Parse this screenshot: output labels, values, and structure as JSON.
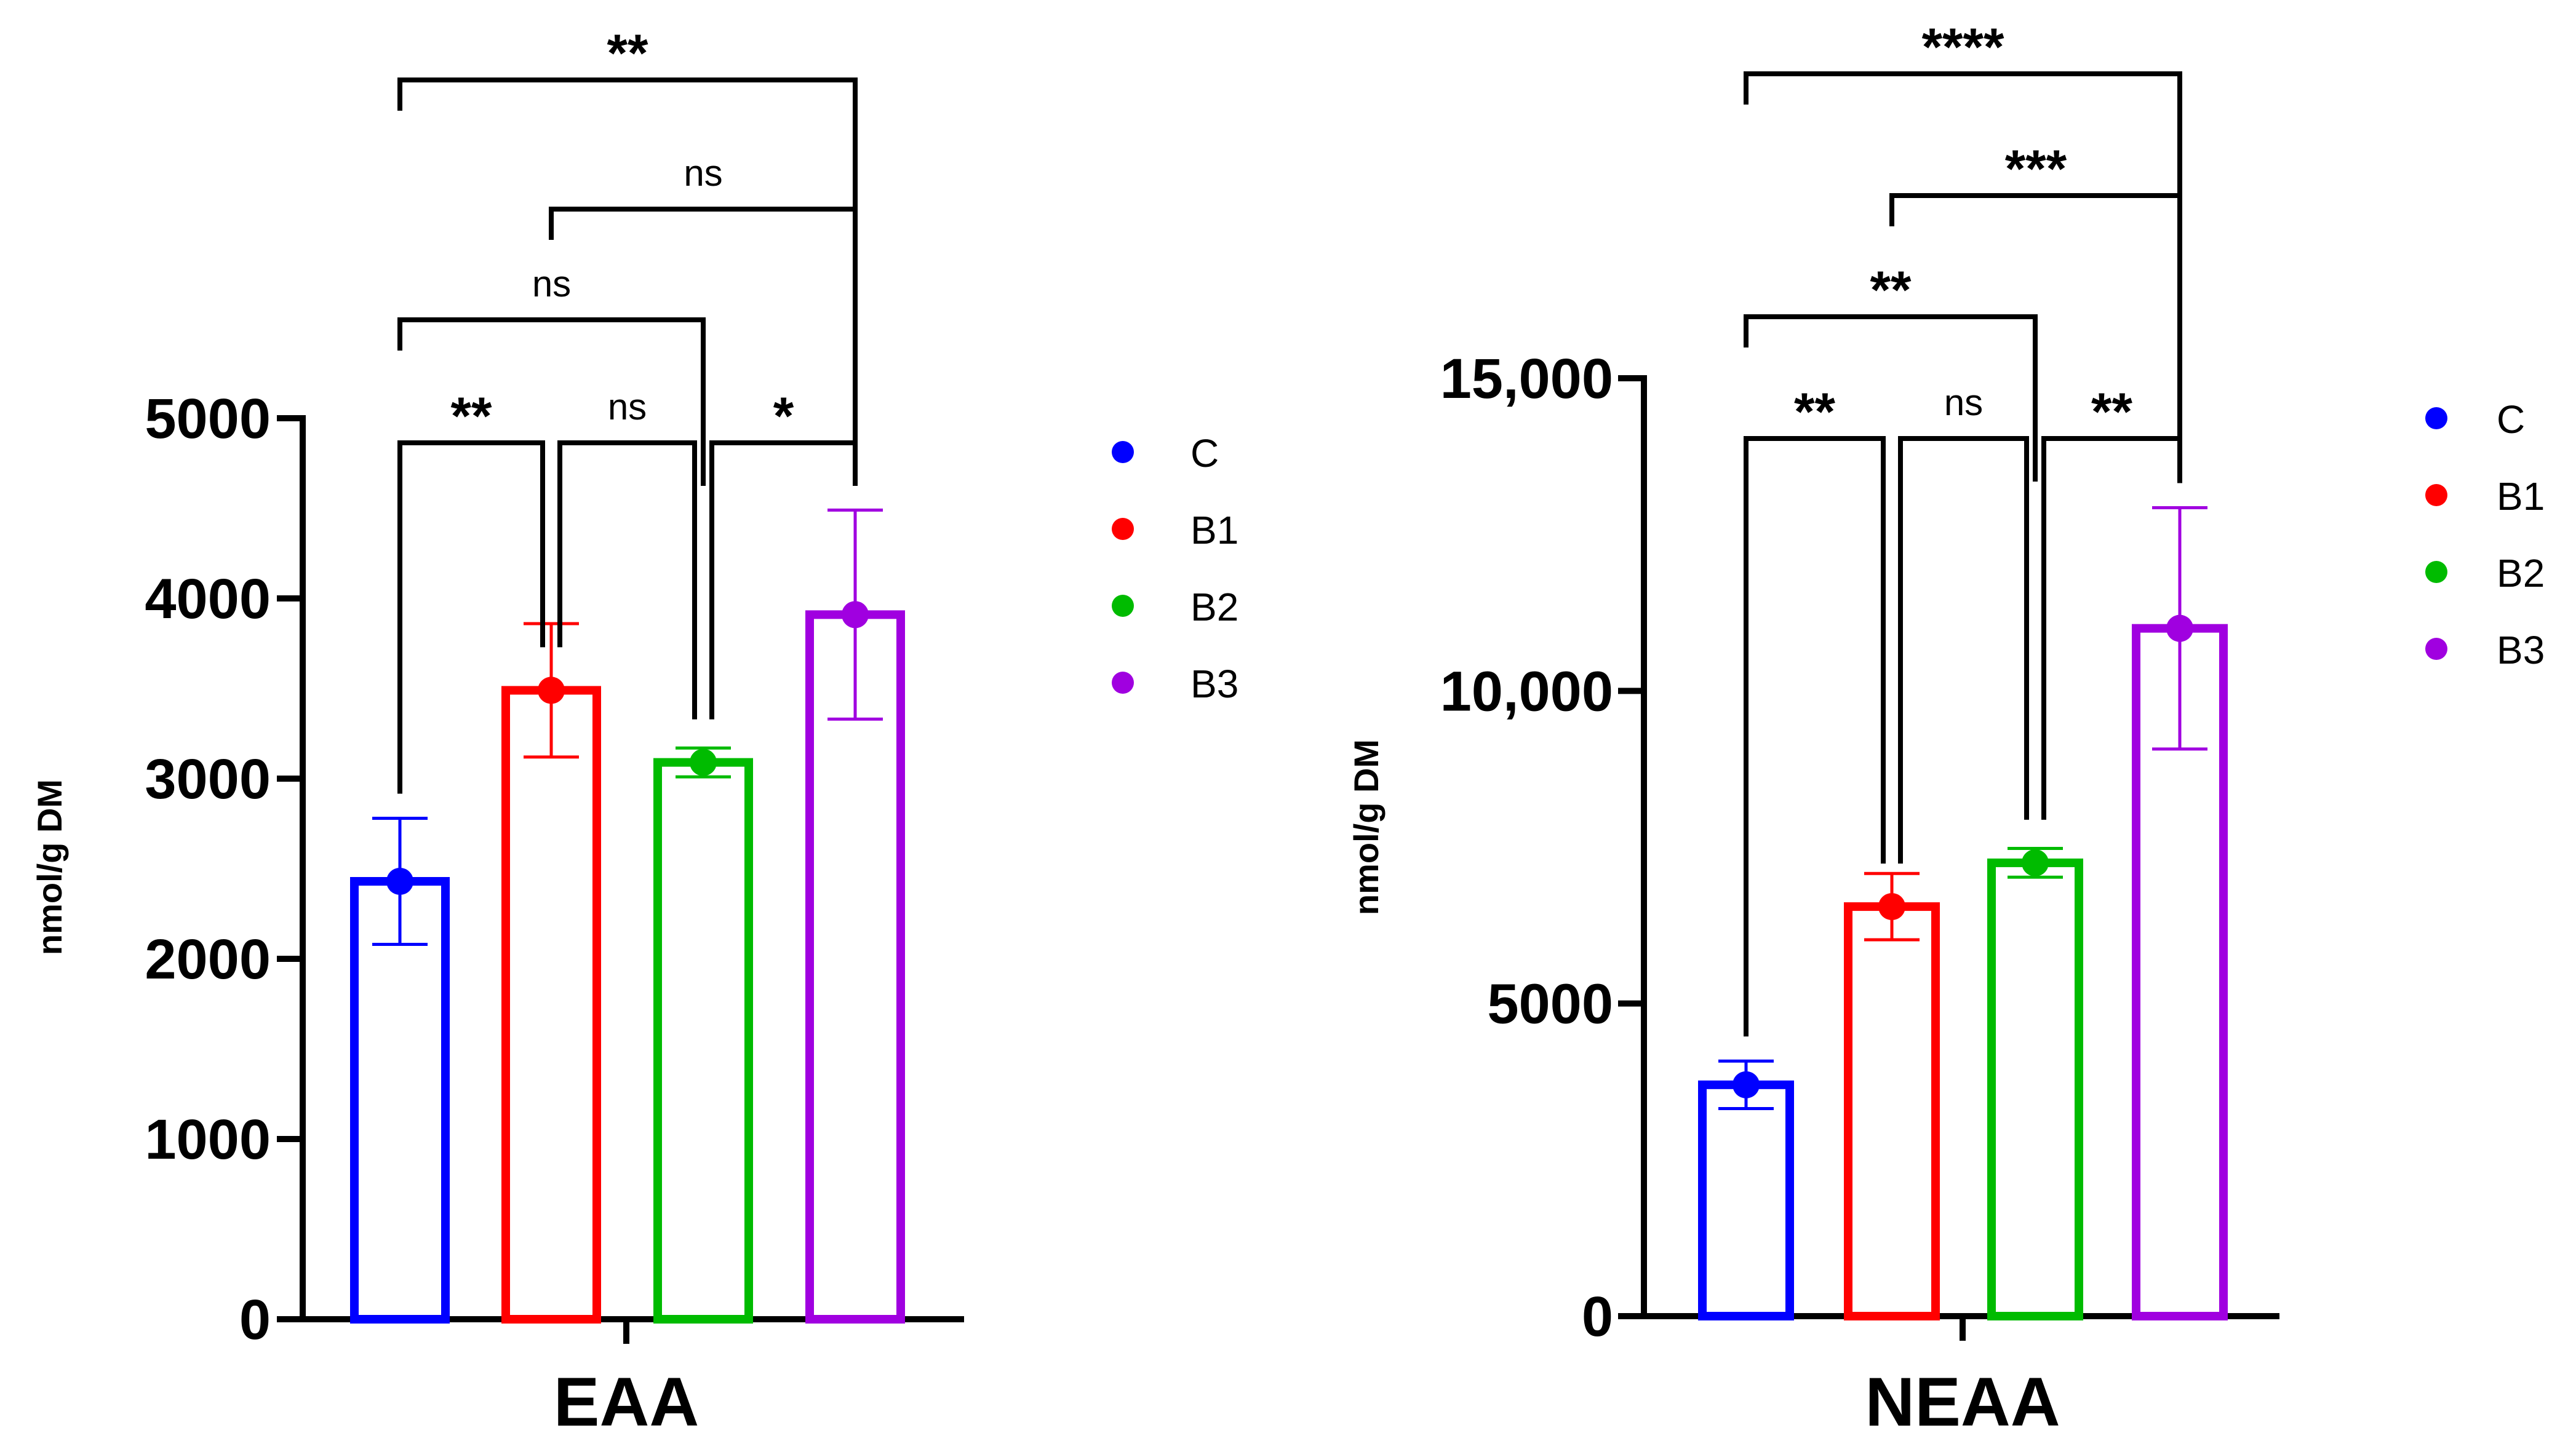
{
  "chart_data": [
    {
      "type": "bar",
      "title": "",
      "xlabel": "EAA",
      "ylabel": "nmol/g DM",
      "ylim": [
        0,
        5000
      ],
      "yticks": [
        0,
        1000,
        2000,
        3000,
        4000,
        5000
      ],
      "ytick_labels": [
        "0",
        "1000",
        "2000",
        "3000",
        "4000",
        "5000"
      ],
      "categories": [
        "C",
        "B1",
        "B2",
        "B3"
      ],
      "values": [
        2430,
        3490,
        3090,
        3910
      ],
      "errors": [
        350,
        370,
        80,
        580
      ],
      "colors": [
        "#0000ff",
        "#ff0000",
        "#00bb00",
        "#a000e0"
      ],
      "comparisons": [
        {
          "groups": [
            "C",
            "B1"
          ],
          "label": "**"
        },
        {
          "groups": [
            "B1",
            "B2"
          ],
          "label": "ns"
        },
        {
          "groups": [
            "B2",
            "B3"
          ],
          "label": "*"
        },
        {
          "groups": [
            "C",
            "B2"
          ],
          "label": "ns"
        },
        {
          "groups": [
            "B1",
            "B3"
          ],
          "label": "ns"
        },
        {
          "groups": [
            "C",
            "B3"
          ],
          "label": "**"
        }
      ],
      "legend": {
        "position": "right",
        "entries": [
          "C",
          "B1",
          "B2",
          "B3"
        ]
      }
    },
    {
      "type": "bar",
      "title": "",
      "xlabel": "NEAA",
      "ylabel": "nmol/g DM",
      "ylim": [
        0,
        15000
      ],
      "yticks": [
        0,
        5000,
        10000,
        15000
      ],
      "ytick_labels": [
        "0",
        "5000",
        "10,000",
        "15,000"
      ],
      "categories": [
        "C",
        "B1",
        "B2",
        "B3"
      ],
      "values": [
        3700,
        6550,
        7250,
        11000
      ],
      "errors": [
        380,
        530,
        230,
        1930
      ],
      "colors": [
        "#0000ff",
        "#ff0000",
        "#00bb00",
        "#a000e0"
      ],
      "comparisons": [
        {
          "groups": [
            "C",
            "B1"
          ],
          "label": "**"
        },
        {
          "groups": [
            "B1",
            "B2"
          ],
          "label": "ns"
        },
        {
          "groups": [
            "B2",
            "B3"
          ],
          "label": "**"
        },
        {
          "groups": [
            "C",
            "B2"
          ],
          "label": "**"
        },
        {
          "groups": [
            "B1",
            "B3"
          ],
          "label": "***"
        },
        {
          "groups": [
            "C",
            "B3"
          ],
          "label": "****"
        }
      ],
      "legend": {
        "position": "right",
        "entries": [
          "C",
          "B1",
          "B2",
          "B3"
        ]
      }
    }
  ]
}
